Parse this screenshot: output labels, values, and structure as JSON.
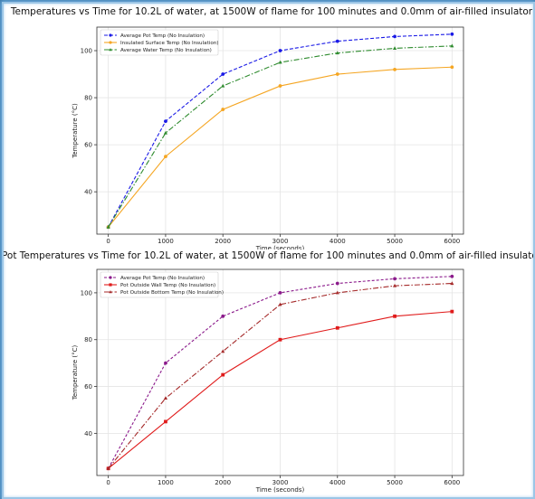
{
  "chart_data": [
    {
      "type": "line",
      "title": "Temperatures vs Time for 10.2L of water, at 1500W of flame for 100 minutes and 0.0mm of air-filled insulator",
      "xlabel": "Time (seconds)",
      "ylabel": "Temperature (°C)",
      "xlim": [
        -200,
        6200
      ],
      "ylim": [
        22,
        110
      ],
      "x_ticks": [
        0,
        1000,
        2000,
        3000,
        4000,
        5000,
        6000
      ],
      "y_ticks": [
        40,
        60,
        80,
        100
      ],
      "grid": true,
      "legend": "top-left",
      "x": [
        0,
        1000,
        2000,
        3000,
        4000,
        5000,
        6000
      ],
      "series": [
        {
          "name": "Average Pot Temp (No Insulation)",
          "color": "#1a1ae6",
          "dash": "4,2",
          "marker": "circle",
          "values": [
            25,
            70,
            90,
            100,
            104,
            106,
            107
          ]
        },
        {
          "name": "Insulated Surface Temp (No Insulation)",
          "color": "#f5a623",
          "dash": "",
          "marker": "circle",
          "values": [
            25,
            55,
            75,
            85,
            90,
            92,
            93
          ]
        },
        {
          "name": "Average Water Temp (No Insulation)",
          "color": "#2e8b2e",
          "dash": "6,2,1.5,2",
          "marker": "triangle",
          "values": [
            25,
            65,
            85,
            95,
            99,
            101,
            102
          ]
        }
      ]
    },
    {
      "type": "line",
      "title": "Pot Temperatures vs Time for 10.2L of water, at 1500W of flame for 100 minutes and 0.0mm of air-filled insulator",
      "xlabel": "Time (seconds)",
      "ylabel": "Temperature (°C)",
      "xlim": [
        -200,
        6200
      ],
      "ylim": [
        22,
        110
      ],
      "x_ticks": [
        0,
        1000,
        2000,
        3000,
        4000,
        5000,
        6000
      ],
      "y_ticks": [
        40,
        60,
        80,
        100
      ],
      "grid": true,
      "legend": "top-left",
      "x": [
        0,
        1000,
        2000,
        3000,
        4000,
        5000,
        6000
      ],
      "series": [
        {
          "name": "Average Pot Temp (No Insulation)",
          "color": "#8b1a8b",
          "dash": "3,2",
          "marker": "circle",
          "values": [
            25,
            70,
            90,
            100,
            104,
            106,
            107
          ]
        },
        {
          "name": "Pot Outside Wall Temp (No Insulation)",
          "color": "#e01b1b",
          "dash": "",
          "marker": "square",
          "values": [
            25,
            45,
            65,
            80,
            85,
            90,
            92
          ]
        },
        {
          "name": "Pot Outside Bottom Temp (No Insulation)",
          "color": "#a52a2a",
          "dash": "6,2,1.5,2",
          "marker": "triangle",
          "values": [
            25,
            55,
            75,
            95,
            100,
            103,
            104
          ]
        }
      ]
    }
  ]
}
